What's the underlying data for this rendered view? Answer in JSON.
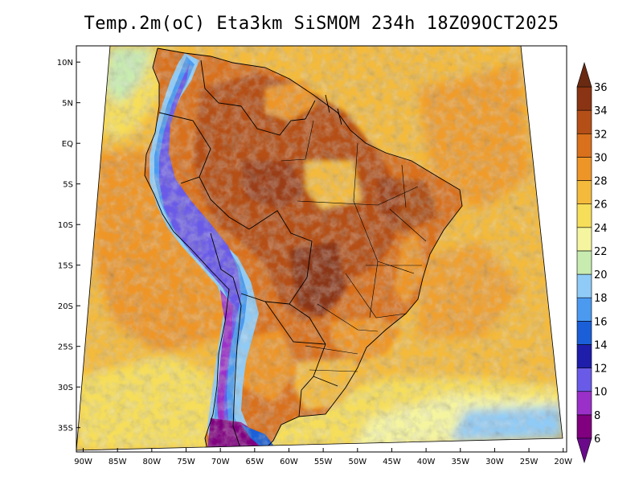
{
  "title": "Temp.2m(oC) Eta3km SiSMOM 234h 18Z09OCT2025",
  "map": {
    "variable": "2 m air temperature",
    "units": "oC",
    "region": "South America",
    "lon_range": [
      -91,
      -19.5
    ],
    "lat_range": [
      -38,
      12
    ],
    "lat_ticks": [
      {
        "value": 10,
        "label": "10N"
      },
      {
        "value": 5,
        "label": "5N"
      },
      {
        "value": 0,
        "label": "EQ"
      },
      {
        "value": -5,
        "label": "5S"
      },
      {
        "value": -10,
        "label": "10S"
      },
      {
        "value": -15,
        "label": "15S"
      },
      {
        "value": -20,
        "label": "20S"
      },
      {
        "value": -25,
        "label": "25S"
      },
      {
        "value": -30,
        "label": "30S"
      },
      {
        "value": -35,
        "label": "35S"
      }
    ],
    "lon_ticks": [
      {
        "value": -90,
        "label": "90W"
      },
      {
        "value": -85,
        "label": "85W"
      },
      {
        "value": -80,
        "label": "80W"
      },
      {
        "value": -75,
        "label": "75W"
      },
      {
        "value": -70,
        "label": "70W"
      },
      {
        "value": -65,
        "label": "65W"
      },
      {
        "value": -60,
        "label": "60W"
      },
      {
        "value": -55,
        "label": "55W"
      },
      {
        "value": -50,
        "label": "50W"
      },
      {
        "value": -45,
        "label": "45W"
      },
      {
        "value": -40,
        "label": "40W"
      },
      {
        "value": -35,
        "label": "35W"
      },
      {
        "value": -30,
        "label": "30W"
      },
      {
        "value": -25,
        "label": "25W"
      },
      {
        "value": -20,
        "label": "20W"
      }
    ]
  },
  "colorbar": {
    "levels": [
      6,
      8,
      10,
      12,
      14,
      16,
      18,
      20,
      22,
      24,
      26,
      28,
      30,
      32,
      34,
      36
    ],
    "colors": [
      "#800080",
      "#9a30c8",
      "#6a5ae8",
      "#1e1eaa",
      "#1a5fd8",
      "#4b9af0",
      "#8fcbf6",
      "#c8ecb0",
      "#f5f5a0",
      "#f6de5a",
      "#f3ba3c",
      "#ee9528",
      "#d9701c",
      "#b54f18",
      "#8a3413"
    ],
    "under_color": "#6a0a8a",
    "over_color": "#6a2a12"
  }
}
